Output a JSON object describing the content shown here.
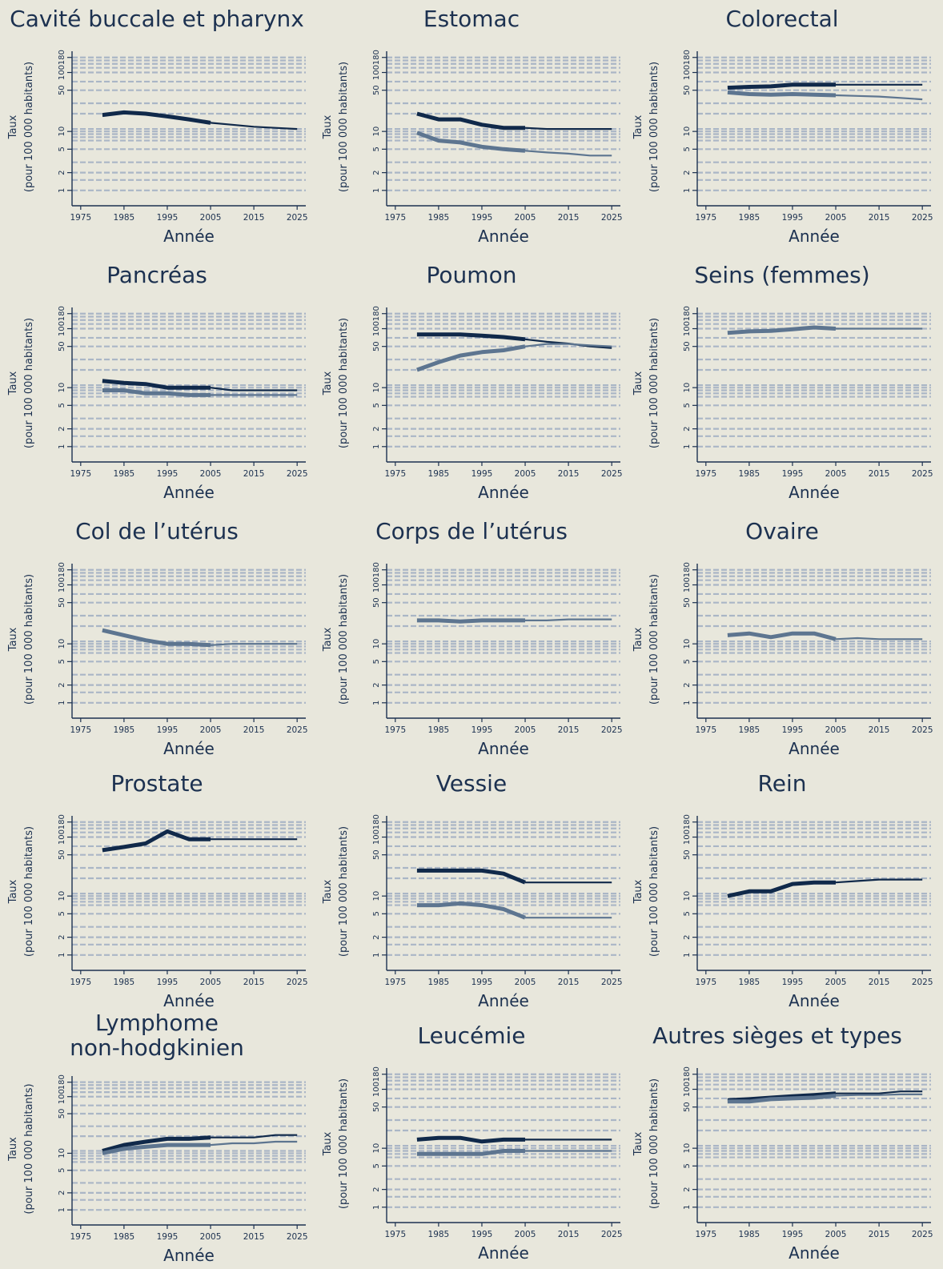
{
  "colors": {
    "background": "#e8e7dc",
    "men": "#10294a",
    "women": "#5d7590",
    "grid": "#aab6c6",
    "axis": "#1c3150"
  },
  "chart_data": [
    {
      "type": "line",
      "title": "Cavité buccale et pharynx",
      "xlabel": "Année",
      "ylabel": [
        "Taux",
        "(pour 100 000 habitants)"
      ],
      "scale": "log",
      "xlim": [
        1973,
        2027
      ],
      "ylim": [
        0.75,
        190
      ],
      "xticks": [
        "1975",
        "1985",
        "1995",
        "2005",
        "2015",
        "2025"
      ],
      "yticks": [
        "1",
        "2",
        "5",
        "10",
        "50",
        "100",
        "180"
      ],
      "grid": "horizontal dashed",
      "series": [
        {
          "kind": "men",
          "x": [
            1980,
            1985,
            1990,
            1995,
            2000,
            2005,
            2010,
            2015,
            2020,
            2025
          ],
          "y": [
            19,
            21,
            20,
            18,
            16,
            14,
            13,
            12,
            11.5,
            11
          ]
        }
      ]
    },
    {
      "type": "line",
      "title": "Estomac",
      "xlabel": "Année",
      "ylabel": [
        "Taux",
        "(pour 100 000 habitants)"
      ],
      "scale": "log",
      "xlim": [
        1973,
        2027
      ],
      "ylim": [
        0.75,
        190
      ],
      "xticks": [
        "1975",
        "1985",
        "1995",
        "2005",
        "2015",
        "2025"
      ],
      "yticks": [
        "1",
        "2",
        "5",
        "10",
        "50",
        "100",
        "180"
      ],
      "grid": "horizontal dashed",
      "series": [
        {
          "kind": "men",
          "x": [
            1980,
            1985,
            1990,
            1995,
            2000,
            2005,
            2010,
            2015,
            2020,
            2025
          ],
          "y": [
            20,
            16,
            16,
            13,
            11.5,
            11.5,
            11,
            11,
            11,
            11
          ]
        },
        {
          "kind": "women",
          "x": [
            1980,
            1985,
            1990,
            1995,
            2000,
            2005,
            2010,
            2015,
            2020,
            2025
          ],
          "y": [
            9.5,
            7,
            6.5,
            5.5,
            5,
            4.7,
            4.4,
            4.2,
            3.9,
            3.9
          ]
        }
      ]
    },
    {
      "type": "line",
      "title": "Colorectal",
      "xlabel": "Année",
      "ylabel": [
        "Taux",
        "(pour 100 000 habitants)"
      ],
      "scale": "log",
      "xlim": [
        1973,
        2027
      ],
      "ylim": [
        0.75,
        190
      ],
      "xticks": [
        "1975",
        "1985",
        "1995",
        "2005",
        "2015",
        "2025"
      ],
      "yticks": [
        "1",
        "2",
        "5",
        "10",
        "50",
        "100",
        "180"
      ],
      "grid": "horizontal dashed",
      "series": [
        {
          "kind": "men",
          "x": [
            1980,
            1985,
            1990,
            1995,
            2000,
            2005,
            2010,
            2015,
            2020,
            2025
          ],
          "y": [
            55,
            57,
            58,
            62,
            62,
            62,
            62,
            62,
            62,
            62
          ]
        },
        {
          "kind": "women",
          "x": [
            1980,
            1985,
            1990,
            1995,
            2000,
            2005,
            2010,
            2015,
            2020,
            2025
          ],
          "y": [
            46,
            43,
            42,
            43,
            42,
            41,
            40,
            39,
            37,
            35
          ]
        }
      ]
    },
    {
      "type": "line",
      "title": "Pancréas",
      "xlabel": "Année",
      "ylabel": [
        "Taux",
        "(pour 100 000 habitants)"
      ],
      "scale": "log",
      "xlim": [
        1973,
        2027
      ],
      "ylim": [
        0.75,
        190
      ],
      "xticks": [
        "1975",
        "1985",
        "1995",
        "2005",
        "2015",
        "2025"
      ],
      "yticks": [
        "1",
        "2",
        "5",
        "10",
        "50",
        "100",
        "180"
      ],
      "grid": "horizontal dashed",
      "series": [
        {
          "kind": "men",
          "x": [
            1980,
            1985,
            1990,
            1995,
            2000,
            2005,
            2010,
            2015,
            2020,
            2025
          ],
          "y": [
            13,
            12,
            11.5,
            10,
            10,
            10,
            9,
            9,
            9,
            9
          ]
        },
        {
          "kind": "women",
          "x": [
            1980,
            1985,
            1990,
            1995,
            2000,
            2005,
            2010,
            2015,
            2020,
            2025
          ],
          "y": [
            9,
            9,
            8,
            8,
            7.5,
            7.5,
            7.5,
            7.5,
            7.5,
            7.5
          ]
        }
      ]
    },
    {
      "type": "line",
      "title": "Poumon",
      "xlabel": "Année",
      "ylabel": [
        "Taux",
        "(pour 100 000 habitants)"
      ],
      "scale": "log",
      "xlim": [
        1973,
        2027
      ],
      "ylim": [
        0.75,
        190
      ],
      "xticks": [
        "1975",
        "1985",
        "1995",
        "2005",
        "2015",
        "2025"
      ],
      "yticks": [
        "1",
        "2",
        "5",
        "10",
        "50",
        "100",
        "180"
      ],
      "grid": "horizontal dashed",
      "series": [
        {
          "kind": "men",
          "x": [
            1980,
            1985,
            1990,
            1995,
            2000,
            2005,
            2010,
            2015,
            2020,
            2025
          ],
          "y": [
            80,
            80,
            80,
            76,
            72,
            66,
            60,
            56,
            50,
            47
          ]
        },
        {
          "kind": "women",
          "x": [
            1980,
            1985,
            1990,
            1995,
            2000,
            2005,
            2010,
            2015,
            2020,
            2025
          ],
          "y": [
            20,
            27,
            35,
            40,
            43,
            50,
            55,
            55,
            52,
            50
          ]
        }
      ]
    },
    {
      "type": "line",
      "title": "Seins (femmes)",
      "xlabel": "Année",
      "ylabel": [
        "Taux",
        "(pour 100 000 habitants)"
      ],
      "scale": "log",
      "xlim": [
        1973,
        2027
      ],
      "ylim": [
        0.75,
        190
      ],
      "xticks": [
        "1975",
        "1985",
        "1995",
        "2005",
        "2015",
        "2025"
      ],
      "yticks": [
        "1",
        "2",
        "5",
        "10",
        "50",
        "100",
        "180"
      ],
      "grid": "horizontal dashed",
      "series": [
        {
          "kind": "women",
          "x": [
            1980,
            1985,
            1990,
            1995,
            2000,
            2005,
            2010,
            2015,
            2020,
            2025
          ],
          "y": [
            85,
            90,
            92,
            98,
            105,
            100,
            100,
            100,
            100,
            100
          ]
        }
      ]
    },
    {
      "type": "line",
      "title": "Col de l’utérus",
      "xlabel": "Année",
      "ylabel": [
        "Taux",
        "(pour 100 000 habitants)"
      ],
      "scale": "log",
      "xlim": [
        1973,
        2027
      ],
      "ylim": [
        0.75,
        190
      ],
      "xticks": [
        "1975",
        "1985",
        "1995",
        "2005",
        "2015",
        "2025"
      ],
      "yticks": [
        "1",
        "2",
        "5",
        "10",
        "50",
        "100",
        "180"
      ],
      "grid": "horizontal dashed",
      "series": [
        {
          "kind": "women",
          "x": [
            1980,
            1985,
            1990,
            1995,
            2000,
            2005,
            2010,
            2015,
            2020,
            2025
          ],
          "y": [
            17,
            14,
            11.5,
            10,
            10,
            9.5,
            10,
            10,
            10,
            10
          ]
        }
      ]
    },
    {
      "type": "line",
      "title": "Corps de l’utérus",
      "xlabel": "Année",
      "ylabel": [
        "Taux",
        "(pour 100 000 habitants)"
      ],
      "scale": "log",
      "xlim": [
        1973,
        2027
      ],
      "ylim": [
        0.75,
        190
      ],
      "xticks": [
        "1975",
        "1985",
        "1995",
        "2005",
        "2015",
        "2025"
      ],
      "yticks": [
        "1",
        "2",
        "5",
        "10",
        "50",
        "100",
        "180"
      ],
      "grid": "horizontal dashed",
      "series": [
        {
          "kind": "women",
          "x": [
            1980,
            1985,
            1990,
            1995,
            2000,
            2005,
            2010,
            2015,
            2020,
            2025
          ],
          "y": [
            25,
            25,
            24,
            25,
            25,
            25,
            25,
            26,
            26,
            26
          ]
        }
      ]
    },
    {
      "type": "line",
      "title": "Ovaire",
      "xlabel": "Année",
      "ylabel": [
        "Taux",
        "(pour 100 000 habitants)"
      ],
      "scale": "log",
      "xlim": [
        1973,
        2027
      ],
      "ylim": [
        0.75,
        190
      ],
      "xticks": [
        "1975",
        "1985",
        "1995",
        "2005",
        "2015",
        "2025"
      ],
      "yticks": [
        "1",
        "2",
        "5",
        "10",
        "50",
        "100",
        "180"
      ],
      "grid": "horizontal dashed",
      "series": [
        {
          "kind": "women",
          "x": [
            1980,
            1985,
            1990,
            1995,
            2000,
            2005,
            2010,
            2015,
            2020,
            2025
          ],
          "y": [
            14,
            15,
            13,
            15,
            15,
            12,
            12.5,
            12,
            12,
            12
          ]
        }
      ]
    },
    {
      "type": "line",
      "title": "Prostate",
      "xlabel": "Année",
      "ylabel": [
        "Taux",
        "(pour 100 000 habitants)"
      ],
      "scale": "log",
      "xlim": [
        1973,
        2027
      ],
      "ylim": [
        0.75,
        190
      ],
      "xticks": [
        "1975",
        "1985",
        "1995",
        "2005",
        "2015",
        "2025"
      ],
      "yticks": [
        "1",
        "2",
        "5",
        "10",
        "50",
        "100",
        "180"
      ],
      "grid": "horizontal dashed",
      "series": [
        {
          "kind": "men",
          "x": [
            1980,
            1985,
            1990,
            1995,
            2000,
            2005,
            2010,
            2015,
            2020,
            2025
          ],
          "y": [
            60,
            68,
            78,
            125,
            92,
            92,
            92,
            92,
            92,
            92
          ]
        }
      ]
    },
    {
      "type": "line",
      "title": "Vessie",
      "xlabel": "Année",
      "ylabel": [
        "Taux",
        "(pour 100 000 habitants)"
      ],
      "scale": "log",
      "xlim": [
        1973,
        2027
      ],
      "ylim": [
        0.75,
        190
      ],
      "xticks": [
        "1975",
        "1985",
        "1995",
        "2005",
        "2015",
        "2025"
      ],
      "yticks": [
        "1",
        "2",
        "5",
        "10",
        "50",
        "100",
        "180"
      ],
      "grid": "horizontal dashed",
      "series": [
        {
          "kind": "men",
          "x": [
            1980,
            1985,
            1990,
            1995,
            2000,
            2005,
            2010,
            2015,
            2020,
            2025
          ],
          "y": [
            27,
            27,
            27,
            27,
            24,
            17,
            17,
            17,
            17,
            17
          ]
        },
        {
          "kind": "women",
          "x": [
            1980,
            1985,
            1990,
            1995,
            2000,
            2005,
            2010,
            2015,
            2020,
            2025
          ],
          "y": [
            7,
            7,
            7.5,
            7,
            6,
            4.3,
            4.3,
            4.3,
            4.3,
            4.3
          ]
        }
      ]
    },
    {
      "type": "line",
      "title": "Rein",
      "xlabel": "Année",
      "ylabel": [
        "Taux",
        "(pour 100 000 habitants)"
      ],
      "scale": "log",
      "xlim": [
        1973,
        2027
      ],
      "ylim": [
        0.75,
        190
      ],
      "xticks": [
        "1975",
        "1985",
        "1995",
        "2005",
        "2015",
        "2025"
      ],
      "yticks": [
        "1",
        "2",
        "5",
        "10",
        "50",
        "100",
        "180"
      ],
      "grid": "horizontal dashed",
      "series": [
        {
          "kind": "men",
          "x": [
            1980,
            1985,
            1990,
            1995,
            2000,
            2005,
            2010,
            2015,
            2020,
            2025
          ],
          "y": [
            10,
            12,
            12,
            16,
            17,
            17,
            18,
            19,
            19,
            19
          ]
        }
      ]
    },
    {
      "type": "line",
      "title": "Lymphome\nnon-hodgkinien",
      "xlabel": "Année",
      "ylabel": [
        "Taux",
        "(pour 100 000 habitants)"
      ],
      "scale": "log",
      "xlim": [
        1973,
        2027
      ],
      "ylim": [
        0.75,
        190
      ],
      "xticks": [
        "1975",
        "1985",
        "1995",
        "2005",
        "2015",
        "2025"
      ],
      "yticks": [
        "1",
        "2",
        "5",
        "10",
        "50",
        "100",
        "180"
      ],
      "grid": "horizontal dashed",
      "series": [
        {
          "kind": "men",
          "x": [
            1980,
            1985,
            1990,
            1995,
            2000,
            2005,
            2010,
            2015,
            2020,
            2025
          ],
          "y": [
            11,
            14,
            16,
            18,
            18,
            19,
            19,
            19,
            21,
            21
          ]
        },
        {
          "kind": "women",
          "x": [
            1980,
            1985,
            1990,
            1995,
            2000,
            2005,
            2010,
            2015,
            2020,
            2025
          ],
          "y": [
            10,
            12,
            13,
            14,
            14,
            14,
            15,
            15,
            16,
            16
          ]
        }
      ]
    },
    {
      "type": "line",
      "title": "Leucémie",
      "xlabel": "Année",
      "ylabel": [
        "Taux",
        "(pour 100 000 habitants)"
      ],
      "scale": "log",
      "xlim": [
        1973,
        2027
      ],
      "ylim": [
        0.75,
        190
      ],
      "xticks": [
        "1975",
        "1985",
        "1995",
        "2005",
        "2015",
        "2025"
      ],
      "yticks": [
        "1",
        "2",
        "5",
        "10",
        "50",
        "100",
        "180"
      ],
      "grid": "horizontal dashed",
      "series": [
        {
          "kind": "men",
          "x": [
            1980,
            1985,
            1990,
            1995,
            2000,
            2005,
            2010,
            2015,
            2020,
            2025
          ],
          "y": [
            14,
            15,
            15,
            13,
            14,
            14,
            14,
            14,
            14,
            14
          ]
        },
        {
          "kind": "women",
          "x": [
            1980,
            1985,
            1990,
            1995,
            2000,
            2005,
            2010,
            2015,
            2020,
            2025
          ],
          "y": [
            8,
            8,
            8,
            8,
            9,
            9,
            9,
            9,
            9,
            9
          ]
        }
      ]
    },
    {
      "type": "line",
      "title": "Autres sièges et types",
      "xlabel": "Année",
      "ylabel": [
        "Taux",
        "(pour 100 000 habitants)"
      ],
      "scale": "log",
      "xlim": [
        1973,
        2027
      ],
      "ylim": [
        0.75,
        190
      ],
      "xticks": [
        "1975",
        "1985",
        "1995",
        "2005",
        "2015",
        "2025"
      ],
      "yticks": [
        "1",
        "2",
        "5",
        "10",
        "50",
        "100",
        "180"
      ],
      "grid": "horizontal dashed",
      "series": [
        {
          "kind": "men",
          "x": [
            1980,
            1985,
            1990,
            1995,
            2000,
            2005,
            2010,
            2015,
            2020,
            2025
          ],
          "y": [
            65,
            68,
            72,
            76,
            80,
            85,
            85,
            85,
            92,
            92
          ]
        },
        {
          "kind": "women",
          "x": [
            1980,
            1985,
            1990,
            1995,
            2000,
            2005,
            2010,
            2015,
            2020,
            2025
          ],
          "y": [
            62,
            62,
            68,
            70,
            72,
            78,
            80,
            80,
            82,
            82
          ]
        }
      ]
    }
  ]
}
